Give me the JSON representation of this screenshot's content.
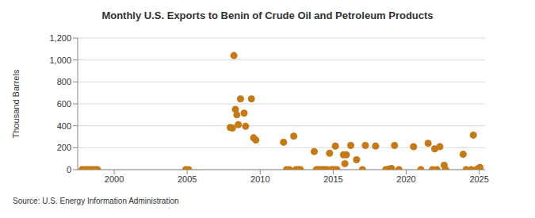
{
  "chart_data": {
    "type": "scatter",
    "title": "Monthly U.S. Exports to Benin of Crude Oil and Petroleum Products",
    "y_label": "Thousand Barrels",
    "source": "Source: U.S. Energy Information Administration",
    "x": [
      1997.8,
      1997.95,
      1998.1,
      1998.25,
      1998.4,
      1998.55,
      1998.7,
      1998.85,
      2004.9,
      2005.1,
      2007.95,
      2008.1,
      2008.2,
      2008.3,
      2008.4,
      2008.5,
      2008.65,
      2008.9,
      2009.0,
      2009.4,
      2009.55,
      2009.7,
      2011.6,
      2011.8,
      2012.0,
      2012.3,
      2012.45,
      2012.6,
      2012.75,
      2013.7,
      2013.85,
      2014.0,
      2014.15,
      2014.3,
      2014.45,
      2014.6,
      2014.75,
      2014.9,
      2015.05,
      2015.15,
      2015.25,
      2015.7,
      2015.8,
      2015.9,
      2016.2,
      2016.6,
      2017.0,
      2017.2,
      2017.9,
      2018.6,
      2018.8,
      2019.0,
      2019.2,
      2019.5,
      2020.5,
      2021.0,
      2021.5,
      2021.8,
      2021.95,
      2022.1,
      2022.3,
      2022.6,
      2022.7,
      2023.9,
      2024.1,
      2024.45,
      2024.6,
      2024.8,
      2024.95,
      2025.05
    ],
    "values": [
      0,
      0,
      0,
      0,
      0,
      0,
      0,
      0,
      0,
      0,
      385,
      380,
      1040,
      550,
      500,
      410,
      645,
      515,
      395,
      645,
      290,
      270,
      250,
      0,
      0,
      305,
      0,
      0,
      0,
      165,
      0,
      0,
      0,
      0,
      0,
      0,
      150,
      0,
      0,
      215,
      0,
      135,
      55,
      135,
      220,
      90,
      0,
      220,
      215,
      0,
      5,
      10,
      220,
      0,
      210,
      0,
      240,
      0,
      190,
      0,
      210,
      40,
      0,
      140,
      0,
      0,
      315,
      0,
      10,
      20
    ],
    "color": "#c47a17",
    "marker": "circle",
    "xlim": [
      1997.5,
      2025.4
    ],
    "xticks": [
      2000,
      2005,
      2010,
      2015,
      2020,
      2025
    ],
    "ylim": [
      0,
      1200
    ],
    "yticks": [
      0,
      200,
      400,
      600,
      800,
      {
        "value": 1000,
        "label": "1,000"
      },
      {
        "value": 1200,
        "label": "1,200"
      }
    ],
    "grid": true
  }
}
